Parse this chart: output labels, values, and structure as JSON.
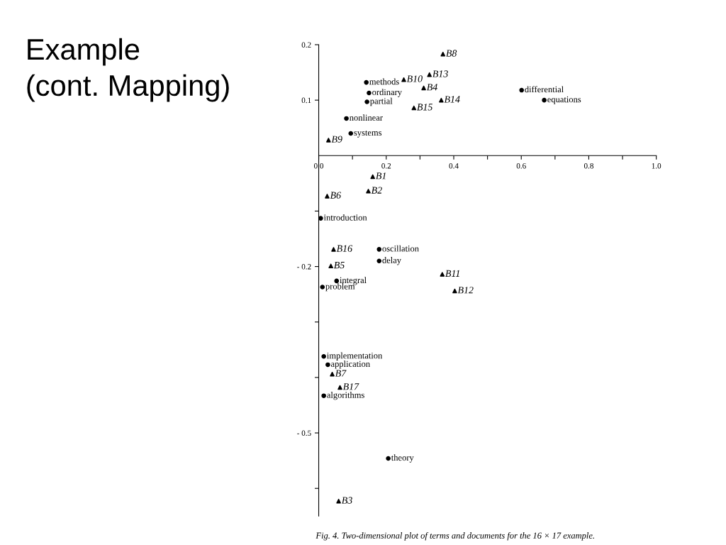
{
  "chart_data": {
    "type": "scatter",
    "title": "Example\n(cont. Mapping)",
    "series": [
      {
        "color": "#000000",
        "marker": "circle",
        "x": [
          0.141,
          0.149,
          0.143,
          0.082,
          0.095,
          0.601,
          0.668,
          0.006,
          0.179,
          0.179,
          0.053,
          0.011,
          0.015,
          0.027,
          0.015,
          0.206
        ],
        "values": [
          0.132,
          0.113,
          0.097,
          0.067,
          0.04,
          0.118,
          0.1,
          -0.113,
          -0.169,
          -0.19,
          -0.226,
          -0.237,
          -0.362,
          -0.377,
          -0.433,
          -0.546
        ]
      },
      {
        "color": "#000000",
        "marker": "triangle",
        "x": [
          0.368,
          0.328,
          0.252,
          0.311,
          0.363,
          0.282,
          0.029,
          0.16,
          0.147,
          0.025,
          0.044,
          0.036,
          0.366,
          0.403,
          0.04,
          0.063,
          0.059
        ],
        "values": [
          0.183,
          0.146,
          0.137,
          0.122,
          0.1,
          0.086,
          0.028,
          -0.038,
          -0.064,
          -0.073,
          -0.169,
          -0.199,
          -0.214,
          -0.244,
          -0.394,
          -0.418,
          -0.623
        ]
      }
    ],
    "xlim": [
      0,
      1.0
    ],
    "ylim": [
      -0.65,
      0.2
    ],
    "xticks": [
      {
        "value": 0,
        "label": "0.0"
      },
      {
        "value": 0.1,
        "label": null
      },
      0.2,
      {
        "value": 0.3,
        "label": null
      },
      0.4,
      {
        "value": 0.5,
        "label": null
      },
      0.6,
      {
        "value": 0.7,
        "label": null
      },
      0.8,
      {
        "value": 0.9,
        "label": null
      },
      {
        "value": 1.0,
        "label": "1.0"
      }
    ],
    "yticks": [
      0.2,
      0.1,
      {
        "value": -0.1,
        "label": null
      },
      {
        "value": -0.2,
        "label": "- 0.2"
      },
      {
        "value": -0.3,
        "label": null
      },
      {
        "value": -0.4,
        "label": null
      },
      {
        "value": -0.5,
        "label": "- 0.5"
      },
      {
        "value": -0.6,
        "label": null
      }
    ],
    "grid": false,
    "legend": false,
    "annotations": [
      {
        "text": "methods",
        "x": 0.141,
        "y": 0.132
      },
      {
        "text": "ordinary",
        "x": 0.149,
        "y": 0.113
      },
      {
        "text": "partial",
        "x": 0.143,
        "y": 0.097
      },
      {
        "text": "nonlinear",
        "x": 0.082,
        "y": 0.067
      },
      {
        "text": "systems",
        "x": 0.095,
        "y": 0.04
      },
      {
        "text": "differential",
        "x": 0.601,
        "y": 0.118
      },
      {
        "text": "equations",
        "x": 0.668,
        "y": 0.1
      },
      {
        "text": "introduction",
        "x": 0.006,
        "y": -0.113
      },
      {
        "text": "oscillation",
        "x": 0.179,
        "y": -0.169
      },
      {
        "text": "delay",
        "x": 0.179,
        "y": -0.19
      },
      {
        "text": "integral",
        "x": 0.053,
        "y": -0.226
      },
      {
        "text": "problem",
        "x": 0.011,
        "y": -0.237
      },
      {
        "text": "implementation",
        "x": 0.015,
        "y": -0.362
      },
      {
        "text": "application",
        "x": 0.027,
        "y": -0.377
      },
      {
        "text": "algorithms",
        "x": 0.015,
        "y": -0.433
      },
      {
        "text": "theory",
        "x": 0.206,
        "y": -0.546
      },
      {
        "text": "B8",
        "x": 0.368,
        "y": 0.183
      },
      {
        "text": "B13",
        "x": 0.328,
        "y": 0.146
      },
      {
        "text": "B10",
        "x": 0.252,
        "y": 0.137
      },
      {
        "text": "B4",
        "x": 0.311,
        "y": 0.122
      },
      {
        "text": "B14",
        "x": 0.363,
        "y": 0.1
      },
      {
        "text": "B15",
        "x": 0.282,
        "y": 0.086
      },
      {
        "text": "B9",
        "x": 0.029,
        "y": 0.028
      },
      {
        "text": "B1",
        "x": 0.16,
        "y": -0.038
      },
      {
        "text": "B2",
        "x": 0.147,
        "y": -0.064
      },
      {
        "text": "B6",
        "x": 0.025,
        "y": -0.073
      },
      {
        "text": "B16",
        "x": 0.044,
        "y": -0.169
      },
      {
        "text": "B5",
        "x": 0.036,
        "y": -0.199
      },
      {
        "text": "B11",
        "x": 0.366,
        "y": -0.214
      },
      {
        "text": "B12",
        "x": 0.403,
        "y": -0.244
      },
      {
        "text": "B7",
        "x": 0.04,
        "y": -0.394
      },
      {
        "text": "B17",
        "x": 0.063,
        "y": -0.418
      },
      {
        "text": "B3",
        "x": 0.059,
        "y": -0.623
      },
      "Fig. 4. Two-dimensional plot of terms and documents for the 16 × 17 example."
    ]
  }
}
